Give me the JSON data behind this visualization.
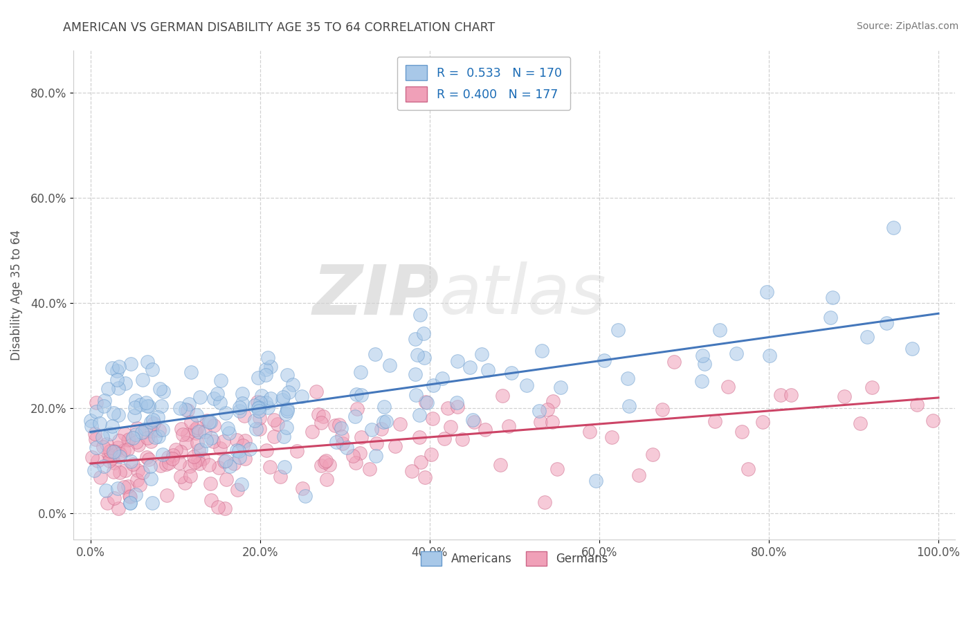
{
  "title": "AMERICAN VS GERMAN DISABILITY AGE 35 TO 64 CORRELATION CHART",
  "source": "Source: ZipAtlas.com",
  "ylabel": "Disability Age 35 to 64",
  "xlabel": "",
  "xlim": [
    -0.02,
    1.02
  ],
  "ylim": [
    -0.05,
    0.88
  ],
  "xticks": [
    0.0,
    0.2,
    0.4,
    0.6,
    0.8,
    1.0
  ],
  "xtick_labels": [
    "0.0%",
    "20.0%",
    "40.0%",
    "60.0%",
    "80.0%",
    "100.0%"
  ],
  "yticks": [
    0.0,
    0.2,
    0.4,
    0.6,
    0.8
  ],
  "ytick_labels": [
    "0.0%",
    "20.0%",
    "40.0%",
    "60.0%",
    "80.0%"
  ],
  "americans_color": "#a8c8e8",
  "americans_edge": "#6699cc",
  "germans_color": "#f0a0b8",
  "germans_edge": "#cc6688",
  "trend_blue": "#4477bb",
  "trend_pink": "#cc4466",
  "watermark_zip": "ZIP",
  "watermark_atlas": "atlas",
  "watermark_color": "#d8d8d8",
  "R_american": 0.533,
  "N_american": 170,
  "R_german": 0.4,
  "N_german": 177,
  "am_intercept": 0.155,
  "am_slope": 0.225,
  "de_intercept": 0.095,
  "de_slope": 0.125,
  "legend1_label": "R =  0.533   N = 170",
  "legend2_label": "R = 0.400   N = 177",
  "legend_text_color": "#1a6bb5",
  "title_color": "#444444",
  "source_color": "#777777",
  "axis_color": "#555555",
  "grid_color": "#cccccc"
}
